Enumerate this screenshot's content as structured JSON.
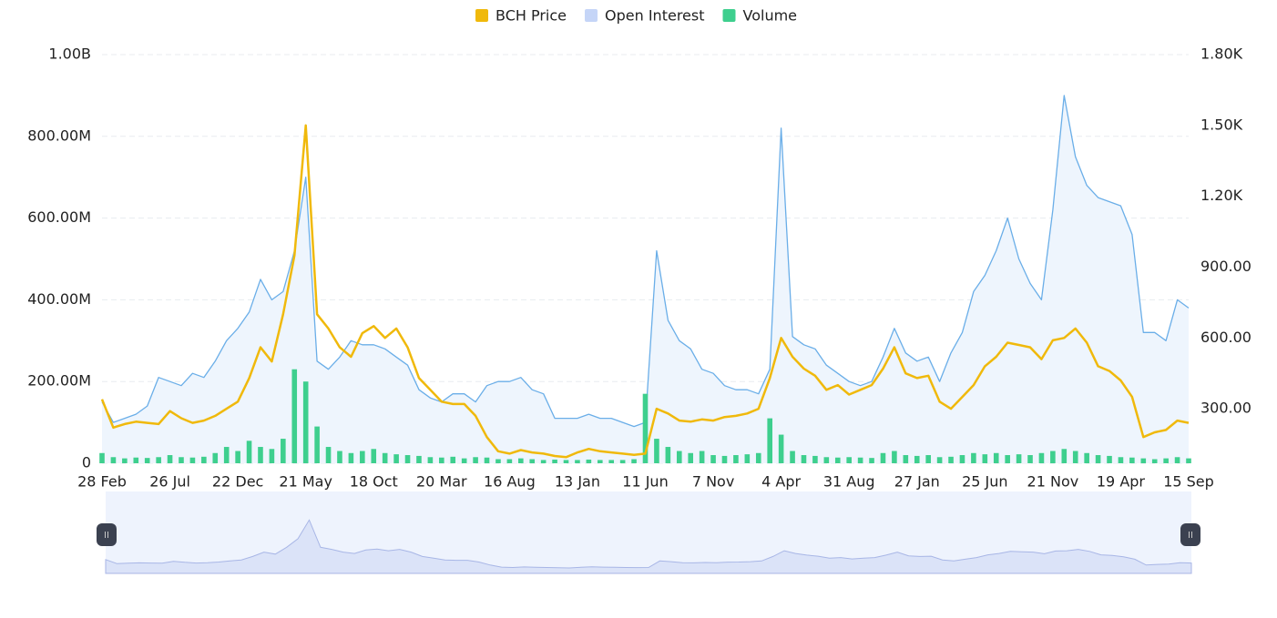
{
  "chart_data": {
    "type": "line",
    "categories": [
      "28 Feb",
      null,
      null,
      null,
      null,
      null,
      "26 Jul",
      null,
      null,
      null,
      null,
      null,
      "22 Dec",
      null,
      null,
      null,
      null,
      null,
      "21 May",
      null,
      null,
      null,
      null,
      null,
      "18 Oct",
      null,
      null,
      null,
      null,
      null,
      "20 Mar",
      null,
      null,
      null,
      null,
      null,
      "16 Aug",
      null,
      null,
      null,
      null,
      null,
      "13 Jan",
      null,
      null,
      null,
      null,
      null,
      "11 Jun",
      null,
      null,
      null,
      null,
      null,
      "7 Nov",
      null,
      null,
      null,
      null,
      null,
      "4 Apr",
      null,
      null,
      null,
      null,
      null,
      "31 Aug",
      null,
      null,
      null,
      null,
      null,
      "27 Jan",
      null,
      null,
      null,
      null,
      null,
      "25 Jun",
      null,
      null,
      null,
      null,
      null,
      "21 Nov",
      null,
      null,
      null,
      null,
      null,
      "19 Apr",
      null,
      null,
      null,
      null,
      null,
      "15 Sep"
    ],
    "series": [
      {
        "name": "BCH Price",
        "color": "#f0b90b",
        "axis": "y2",
        "values": [
          340,
          220,
          235,
          245,
          240,
          235,
          290,
          260,
          240,
          250,
          270,
          300,
          330,
          430,
          560,
          500,
          700,
          950,
          1500,
          700,
          640,
          560,
          520,
          620,
          650,
          600,
          640,
          560,
          430,
          380,
          330,
          320,
          320,
          270,
          180,
          120,
          110,
          125,
          115,
          110,
          100,
          95,
          115,
          130,
          120,
          115,
          110,
          105,
          110,
          300,
          280,
          250,
          245,
          255,
          250,
          265,
          270,
          280,
          300,
          430,
          600,
          520,
          470,
          440,
          380,
          400,
          360,
          380,
          400,
          470,
          560,
          450,
          430,
          440,
          330,
          300,
          350,
          400,
          480,
          520,
          580,
          570,
          560,
          510,
          590,
          600,
          640,
          580,
          480,
          460,
          420,
          350,
          180,
          200,
          210,
          250,
          240
        ]
      },
      {
        "name": "Open Interest",
        "color": "#c5d5f7",
        "line_color": "#6aaee8",
        "area_color": "#eef5fd",
        "values": [
          150000000.0,
          100000000.0,
          110000000.0,
          120000000.0,
          140000000.0,
          210000000.0,
          200000000.0,
          190000000.0,
          220000000.0,
          210000000.0,
          250000000.0,
          300000000.0,
          330000000.0,
          370000000.0,
          450000000.0,
          400000000.0,
          420000000.0,
          520000000.0,
          700000000.0,
          250000000.0,
          230000000.0,
          260000000.0,
          300000000.0,
          290000000.0,
          290000000.0,
          280000000.0,
          260000000.0,
          240000000.0,
          180000000.0,
          160000000.0,
          150000000.0,
          170000000.0,
          170000000.0,
          150000000.0,
          190000000.0,
          200000000.0,
          200000000.0,
          210000000.0,
          180000000.0,
          170000000.0,
          110000000.0,
          110000000.0,
          110000000.0,
          120000000.0,
          110000000.0,
          110000000.0,
          100000000.0,
          90000000.0,
          100000000.0,
          520000000.0,
          350000000.0,
          300000000.0,
          280000000.0,
          230000000.0,
          220000000.0,
          190000000.0,
          180000000.0,
          180000000.0,
          170000000.0,
          230000000.0,
          820000000.0,
          310000000.0,
          290000000.0,
          280000000.0,
          240000000.0,
          220000000.0,
          200000000.0,
          190000000.0,
          200000000.0,
          260000000.0,
          330000000.0,
          270000000.0,
          250000000.0,
          260000000.0,
          200000000.0,
          270000000.0,
          320000000.0,
          420000000.0,
          460000000.0,
          520000000.0,
          600000000.0,
          500000000.0,
          440000000.0,
          400000000.0,
          620000000.0,
          900000000.0,
          750000000.0,
          680000000.0,
          650000000.0,
          640000000.0,
          630000000.0,
          560000000.0,
          320000000.0,
          320000000.0,
          300000000.0,
          400000000.0,
          380000000.0
        ]
      },
      {
        "name": "Volume",
        "color": "#3ecf8e",
        "type": "bar",
        "values": [
          25000000.0,
          15000000.0,
          12000000.0,
          14000000.0,
          13000000.0,
          15000000.0,
          20000000.0,
          15000000.0,
          14000000.0,
          16000000.0,
          25000000.0,
          40000000.0,
          30000000.0,
          55000000.0,
          40000000.0,
          35000000.0,
          60000000.0,
          230000000.0,
          200000000.0,
          90000000.0,
          40000000.0,
          30000000.0,
          25000000.0,
          30000000.0,
          35000000.0,
          25000000.0,
          22000000.0,
          20000000.0,
          18000000.0,
          15000000.0,
          14000000.0,
          16000000.0,
          12000000.0,
          15000000.0,
          14000000.0,
          10000000.0,
          10000000.0,
          12000000.0,
          10000000.0,
          8000000.0,
          9000000.0,
          8000000.0,
          8000000.0,
          9000000.0,
          8000000.0,
          8000000.0,
          8000000.0,
          10000000.0,
          170000000.0,
          60000000.0,
          40000000.0,
          30000000.0,
          25000000.0,
          30000000.0,
          20000000.0,
          18000000.0,
          20000000.0,
          22000000.0,
          25000000.0,
          110000000.0,
          70000000.0,
          30000000.0,
          20000000.0,
          18000000.0,
          15000000.0,
          14000000.0,
          15000000.0,
          14000000.0,
          13000000.0,
          25000000.0,
          30000000.0,
          20000000.0,
          18000000.0,
          20000000.0,
          15000000.0,
          16000000.0,
          20000000.0,
          25000000.0,
          22000000.0,
          25000000.0,
          20000000.0,
          22000000.0,
          20000000.0,
          25000000.0,
          30000000.0,
          35000000.0,
          30000000.0,
          25000000.0,
          20000000.0,
          18000000.0,
          15000000.0,
          14000000.0,
          12000000.0,
          10000000.0,
          12000000.0,
          15000000.0,
          12000000.0
        ]
      }
    ],
    "ylim": [
      0,
      1000000000
    ],
    "yticks": [
      0,
      {
        "value": 200000000,
        "label": "200.00M"
      },
      {
        "value": 400000000,
        "label": "400.00M"
      },
      {
        "value": 600000000,
        "label": "600.00M"
      },
      {
        "value": 800000000,
        "label": "800.00M"
      },
      {
        "value": 1000000000,
        "label": "1.00B"
      }
    ],
    "y2lim": [
      69,
      1800
    ],
    "y2ticks": [
      {
        "value": 300,
        "label": "300.00"
      },
      {
        "value": 600,
        "label": "600.00"
      },
      {
        "value": 900,
        "label": "900.00"
      },
      {
        "value": 1200,
        "label": "1.20K"
      },
      {
        "value": 1500,
        "label": "1.50K"
      },
      {
        "value": 1800,
        "label": "1.80K"
      }
    ],
    "grid": true,
    "legend": "top"
  }
}
